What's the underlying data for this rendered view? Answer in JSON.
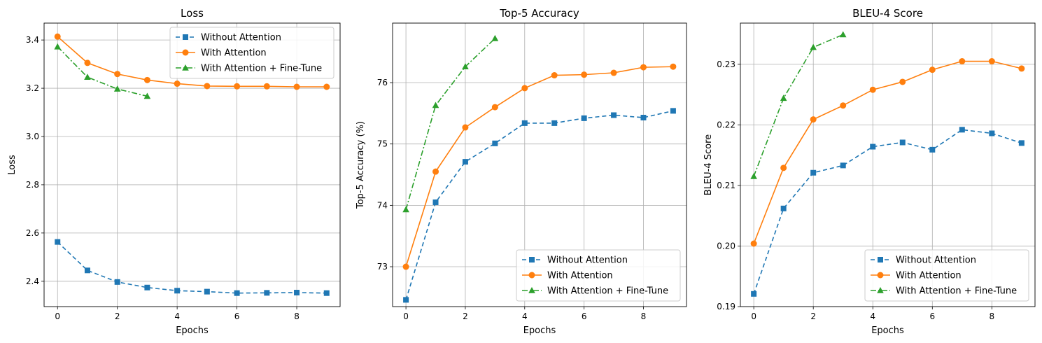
{
  "colors": {
    "without": "#1f77b4",
    "with": "#ff7f0e",
    "finetune": "#2ca02c",
    "grid": "#b0b0b0",
    "axis": "#000000"
  },
  "chart_data": [
    {
      "type": "line",
      "title": "Loss",
      "xlabel": "Epochs",
      "ylabel": "Loss",
      "xlim": [
        -0.45,
        9.45
      ],
      "ylim": [
        2.295,
        3.47
      ],
      "xticks": [
        0,
        2,
        4,
        6,
        8
      ],
      "yticks": [
        2.4,
        2.6,
        2.8,
        3.0,
        3.2,
        3.4
      ],
      "ytick_labels": [
        "2.4",
        "2.6",
        "2.8",
        "3.0",
        "3.2",
        "3.4"
      ],
      "grid": true,
      "legend_position": "upper right",
      "series": [
        {
          "name": "Without Attention",
          "color_key": "without",
          "marker": "square",
          "dash": "dashed",
          "x": [
            0,
            1,
            2,
            3,
            4,
            5,
            6,
            7,
            8,
            9
          ],
          "y": [
            2.563,
            2.445,
            2.397,
            2.374,
            2.361,
            2.357,
            2.351,
            2.352,
            2.353,
            2.351
          ]
        },
        {
          "name": "With Attention",
          "color_key": "with",
          "marker": "circle",
          "dash": "solid",
          "x": [
            0,
            1,
            2,
            3,
            4,
            5,
            6,
            7,
            8,
            9
          ],
          "y": [
            3.414,
            3.305,
            3.259,
            3.234,
            3.219,
            3.209,
            3.208,
            3.208,
            3.206,
            3.206
          ]
        },
        {
          "name": "With Attention + Fine-Tune",
          "color_key": "finetune",
          "marker": "triangle",
          "dash": "dashdot",
          "x": [
            0,
            1,
            2,
            3
          ],
          "y": [
            3.372,
            3.246,
            3.197,
            3.167
          ]
        }
      ]
    },
    {
      "type": "line",
      "title": "Top-5 Accuracy",
      "xlabel": "Epochs",
      "ylabel": "Top-5 Accuracy (%)",
      "xlim": [
        -0.45,
        9.45
      ],
      "ylim": [
        72.35,
        76.97
      ],
      "xticks": [
        0,
        2,
        4,
        6,
        8
      ],
      "yticks": [
        73,
        74,
        75,
        76
      ],
      "ytick_labels": [
        "73",
        "74",
        "75",
        "76"
      ],
      "grid": true,
      "legend_position": "lower right",
      "series": [
        {
          "name": "Without Attention",
          "color_key": "without",
          "marker": "square",
          "dash": "dashed",
          "x": [
            0,
            1,
            2,
            3,
            4,
            5,
            6,
            7,
            8,
            9
          ],
          "y": [
            72.46,
            74.05,
            74.71,
            75.01,
            75.34,
            75.34,
            75.42,
            75.47,
            75.43,
            75.54
          ]
        },
        {
          "name": "With Attention",
          "color_key": "with",
          "marker": "circle",
          "dash": "solid",
          "x": [
            0,
            1,
            2,
            3,
            4,
            5,
            6,
            7,
            8,
            9
          ],
          "y": [
            73.0,
            74.55,
            75.27,
            75.6,
            75.91,
            76.12,
            76.13,
            76.16,
            76.25,
            76.26
          ]
        },
        {
          "name": "With Attention + Fine-Tune",
          "color_key": "finetune",
          "marker": "triangle",
          "dash": "dashdot",
          "x": [
            0,
            1,
            2,
            3
          ],
          "y": [
            73.93,
            75.63,
            76.26,
            76.72
          ]
        }
      ]
    },
    {
      "type": "line",
      "title": "BLEU-4 Score",
      "xlabel": "Epochs",
      "ylabel": "BLEU-4 Score",
      "xlim": [
        -0.45,
        9.45
      ],
      "ylim": [
        0.19,
        0.2368
      ],
      "xticks": [
        0,
        2,
        4,
        6,
        8
      ],
      "yticks": [
        0.19,
        0.2,
        0.21,
        0.22,
        0.23
      ],
      "ytick_labels": [
        "0.19",
        "0.20",
        "0.21",
        "0.22",
        "0.23"
      ],
      "grid": true,
      "legend_position": "lower right",
      "series": [
        {
          "name": "Without Attention",
          "color_key": "without",
          "marker": "square",
          "dash": "dashed",
          "x": [
            0,
            1,
            2,
            3,
            4,
            5,
            6,
            7,
            8,
            9
          ],
          "y": [
            0.1921,
            0.2062,
            0.2121,
            0.2133,
            0.2164,
            0.2171,
            0.2159,
            0.2192,
            0.2186,
            0.217
          ]
        },
        {
          "name": "With Attention",
          "color_key": "with",
          "marker": "circle",
          "dash": "solid",
          "x": [
            0,
            1,
            2,
            3,
            4,
            5,
            6,
            7,
            8,
            9
          ],
          "y": [
            0.2004,
            0.2129,
            0.2209,
            0.2232,
            0.2258,
            0.2271,
            0.2291,
            0.2305,
            0.2305,
            0.2293
          ]
        },
        {
          "name": "With Attention + Fine-Tune",
          "color_key": "finetune",
          "marker": "triangle",
          "dash": "dashdot",
          "x": [
            0,
            1,
            2,
            3
          ],
          "y": [
            0.2115,
            0.2244,
            0.2328,
            0.2349
          ]
        }
      ]
    }
  ]
}
